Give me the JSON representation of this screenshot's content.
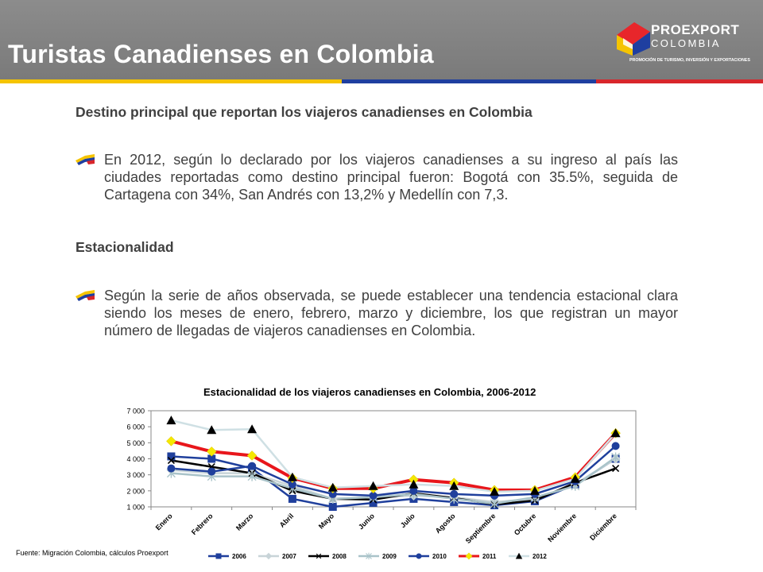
{
  "header": {
    "title": "Turistas Canadienses en Colombia"
  },
  "logo": {
    "name": "PROEXPORT",
    "country": "COLOMBIA",
    "tagline": "PROMOCIÓN DE TURISMO, INVERSIÓN Y EXPORTACIONES"
  },
  "colors": {
    "yellow": "#f5c400",
    "blue": "#1f3fa0",
    "red": "#d8262b",
    "header_gray": "#858585",
    "text": "#404040"
  },
  "sections": [
    {
      "title": "Destino principal que reportan los viajeros canadienses en Colombia",
      "bullet_icon": "colombia-flag-bullet-icon",
      "text": "En 2012, según lo declarado por los viajeros canadienses a su ingreso al país las ciudades reportadas como destino principal fueron: Bogotá con 35.5%, seguida de Cartagena con 34%, San Andrés con 13,2% y Medellín con 7,3."
    },
    {
      "title": "Estacionalidad",
      "bullet_icon": "colombia-flag-bullet-icon",
      "text": "Según la serie de años observada, se puede establecer una tendencia estacional clara siendo los meses de enero, febrero, marzo y diciembre, los que registran un mayor número de llegadas de viajeros canadienses en Colombia."
    }
  ],
  "footnote": "Fuente: Migración Colombia, cálculos Proexport",
  "chart_data": {
    "type": "line",
    "title": "Estacionalidad de los viajeros canadienses en Colombia, 2006-2012",
    "xlabel": "",
    "ylabel": "",
    "ylim": [
      1000,
      7000
    ],
    "yticks": [
      1000,
      2000,
      3000,
      4000,
      5000,
      6000,
      7000
    ],
    "ytick_labels": [
      "1 000",
      "2 000",
      "3 000",
      "4 000",
      "5 000",
      "6 000",
      "7 000"
    ],
    "grid": false,
    "legend": "bottom",
    "categories": [
      "Enero",
      "Febrero",
      "Marzo",
      "Abril",
      "Mayo",
      "Junio",
      "Julio",
      "Agosto",
      "Septiembre",
      "Octubre",
      "Noviembre",
      "Diciembre"
    ],
    "series": [
      {
        "name": "2006",
        "color": "#1f3f9c",
        "marker": "square",
        "values": [
          4150,
          4000,
          3400,
          1500,
          1000,
          1250,
          1500,
          1300,
          1100,
          1350,
          2400,
          4000
        ]
      },
      {
        "name": "2007",
        "color": "#c8d4d8",
        "marker": "diamond",
        "values": [
          3300,
          3100,
          3100,
          2300,
          1500,
          1600,
          1700,
          1600,
          1300,
          1500,
          2400,
          4000
        ]
      },
      {
        "name": "2008",
        "color": "#000000",
        "marker": "x",
        "values": [
          3900,
          3500,
          3100,
          2000,
          1500,
          1450,
          1850,
          1550,
          1150,
          1400,
          2500,
          3400
        ]
      },
      {
        "name": "2009",
        "color": "#a9c3c9",
        "marker": "star",
        "values": [
          3100,
          2900,
          2900,
          2150,
          1500,
          1600,
          1800,
          1500,
          1200,
          1600,
          2300,
          4100
        ]
      },
      {
        "name": "2010",
        "color": "#1f3f9c",
        "marker": "circle",
        "values": [
          3400,
          3200,
          3550,
          2400,
          1800,
          1700,
          2000,
          1800,
          1700,
          1800,
          2600,
          4800
        ]
      },
      {
        "name": "2011",
        "color": "#e8161b",
        "marker": "diamond-yellow",
        "values": [
          5100,
          4450,
          4200,
          2800,
          2150,
          2150,
          2700,
          2500,
          2050,
          2050,
          2850,
          5600
        ]
      },
      {
        "name": "2012",
        "color": "#cfe0e4",
        "marker": "triangle",
        "values": [
          6400,
          5800,
          5850,
          2850,
          2200,
          2300,
          2400,
          2300,
          1950,
          2000,
          2750,
          5600
        ]
      }
    ]
  }
}
